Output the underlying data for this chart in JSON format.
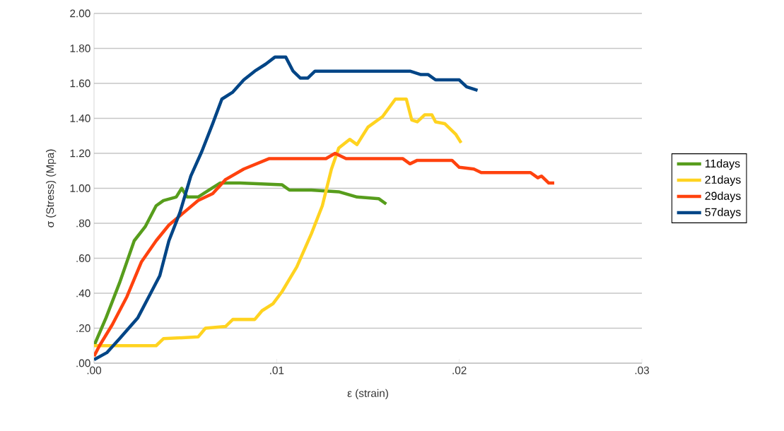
{
  "chart_data": {
    "type": "line",
    "xlabel": "ε (strain)",
    "ylabel": "σ  (Stress) (Mpa)",
    "xlim": [
      0,
      0.03
    ],
    "ylim": [
      0,
      2.0
    ],
    "xticks": [
      {
        "value": 0,
        "label": ".00"
      },
      {
        "value": 0.01,
        "label": ".01"
      },
      {
        "value": 0.02,
        "label": ".02"
      },
      {
        "value": 0.03,
        "label": ".03"
      }
    ],
    "yticks": [
      {
        "value": 0,
        "label": ".00"
      },
      {
        "value": 0.2,
        "label": ".20"
      },
      {
        "value": 0.4,
        "label": ".40"
      },
      {
        "value": 0.6,
        "label": ".60"
      },
      {
        "value": 0.8,
        "label": ".80"
      },
      {
        "value": 1.0,
        "label": "1.00"
      },
      {
        "value": 1.2,
        "label": "1.20"
      },
      {
        "value": 1.4,
        "label": "1.40"
      },
      {
        "value": 1.6,
        "label": "1.60"
      },
      {
        "value": 1.8,
        "label": "1.80"
      },
      {
        "value": 2.0,
        "label": "2.00"
      }
    ],
    "grid": "y",
    "legend": "right",
    "series": [
      {
        "name": "11days",
        "color": "#579d1c",
        "x": [
          0,
          0.00066,
          0.0014,
          0.0022,
          0.0028,
          0.0034,
          0.0038,
          0.0045,
          0.0048,
          0.0051,
          0.0057,
          0.0063,
          0.0069,
          0.008,
          0.0103,
          0.0107,
          0.0119,
          0.0134,
          0.0144,
          0.0156,
          0.016
        ],
        "values": [
          0.1,
          0.26,
          0.46,
          0.7,
          0.78,
          0.9,
          0.93,
          0.95,
          1.0,
          0.95,
          0.95,
          0.99,
          1.03,
          1.03,
          1.02,
          0.99,
          0.99,
          0.98,
          0.95,
          0.94,
          0.91
        ]
      },
      {
        "name": "21days",
        "color": "#ffd320",
        "x": [
          0,
          0.0034,
          0.0038,
          0.0057,
          0.0061,
          0.0072,
          0.0076,
          0.0088,
          0.0092,
          0.0098,
          0.0103,
          0.0107,
          0.0111,
          0.0119,
          0.0125,
          0.013,
          0.0134,
          0.014,
          0.0144,
          0.015,
          0.0158,
          0.0165,
          0.0171,
          0.0174,
          0.0177,
          0.0181,
          0.0185,
          0.0187,
          0.0192,
          0.0198,
          0.0201
        ],
        "values": [
          0.1,
          0.1,
          0.14,
          0.15,
          0.2,
          0.21,
          0.25,
          0.25,
          0.3,
          0.34,
          0.41,
          0.48,
          0.55,
          0.74,
          0.9,
          1.11,
          1.23,
          1.28,
          1.25,
          1.35,
          1.41,
          1.51,
          1.51,
          1.39,
          1.38,
          1.42,
          1.42,
          1.38,
          1.37,
          1.31,
          1.26
        ]
      },
      {
        "name": "29days",
        "color": "#ff420e",
        "x": [
          0,
          0.0003,
          0.001,
          0.0018,
          0.0026,
          0.0034,
          0.0041,
          0.0049,
          0.0057,
          0.0065,
          0.0072,
          0.0082,
          0.0096,
          0.0127,
          0.0132,
          0.0138,
          0.0169,
          0.0173,
          0.0177,
          0.0196,
          0.02,
          0.0208,
          0.0212,
          0.0239,
          0.0243,
          0.0245,
          0.0249,
          0.0252
        ],
        "values": [
          0.04,
          0.1,
          0.22,
          0.38,
          0.58,
          0.7,
          0.79,
          0.86,
          0.93,
          0.97,
          1.05,
          1.11,
          1.17,
          1.17,
          1.2,
          1.17,
          1.17,
          1.14,
          1.16,
          1.16,
          1.12,
          1.11,
          1.09,
          1.09,
          1.06,
          1.07,
          1.03,
          1.03
        ]
      },
      {
        "name": "57days",
        "color": "#004586",
        "x": [
          0,
          0.0007,
          0.0014,
          0.0024,
          0.003,
          0.0036,
          0.0041,
          0.0047,
          0.0053,
          0.0059,
          0.0065,
          0.007,
          0.0076,
          0.0082,
          0.0088,
          0.0094,
          0.0099,
          0.0105,
          0.0109,
          0.0113,
          0.0117,
          0.0121,
          0.0142,
          0.0173,
          0.0179,
          0.0183,
          0.0187,
          0.02,
          0.0204,
          0.021
        ],
        "values": [
          0.02,
          0.06,
          0.14,
          0.26,
          0.38,
          0.5,
          0.7,
          0.86,
          1.07,
          1.21,
          1.37,
          1.51,
          1.55,
          1.62,
          1.67,
          1.71,
          1.75,
          1.75,
          1.67,
          1.63,
          1.63,
          1.67,
          1.67,
          1.67,
          1.65,
          1.65,
          1.62,
          1.62,
          1.58,
          1.56
        ]
      }
    ]
  }
}
